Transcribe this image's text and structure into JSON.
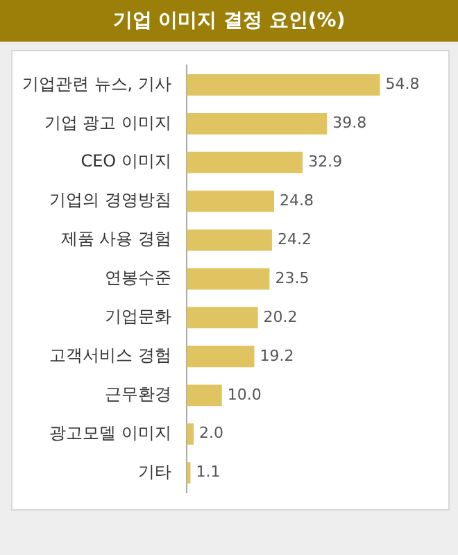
{
  "chart_data": {
    "type": "bar",
    "orientation": "horizontal",
    "title": "기업 이미지 결정 요인(%)",
    "categories": [
      "기업관련 뉴스, 기사",
      "기업 광고 이미지",
      "CEO 이미지",
      "기업의 경영방침",
      "제품 사용 경험",
      "연봉수준",
      "기업문화",
      "고객서비스 경험",
      "근무환경",
      "광고모델 이미지",
      "기타"
    ],
    "values": [
      54.8,
      39.8,
      32.9,
      24.8,
      24.2,
      23.5,
      20.2,
      19.2,
      10.0,
      2.0,
      1.1
    ],
    "color": "#e0c462",
    "value_labels": [
      "54.8",
      "39.8",
      "32.9",
      "24.8",
      "24.2",
      "23.5",
      "20.2",
      "19.2",
      "10.0",
      "2.0",
      "1.1"
    ],
    "grid": false,
    "legend": false,
    "tick_labels": "y"
  }
}
